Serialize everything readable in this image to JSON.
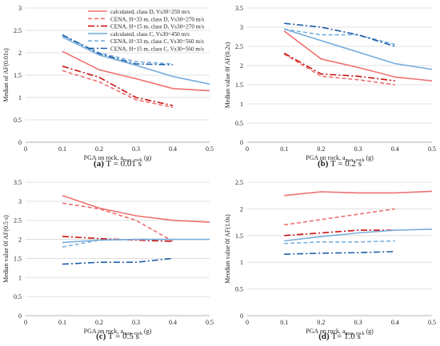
{
  "figure": {
    "legend_entries": [
      {
        "label": "calculated, class D, Vs30=250 m/s",
        "color": "#f07070",
        "dash": "solid"
      },
      {
        "label": "CENA, H=33 m, class D, Vs30=270 m/s",
        "color": "#f07070",
        "dash": "dashed"
      },
      {
        "label": "CENA, H=15 m, class D, Vs30=270 m/s",
        "color": "#cc1111",
        "dash": "dashdot"
      },
      {
        "label": "calculated, class C, Vs30=450 m/s",
        "color": "#7aaedc",
        "dash": "solid"
      },
      {
        "label": "CENA, H=33 m, class C, Vs30=560 m/s",
        "color": "#7aaedc",
        "dash": "dashed"
      },
      {
        "label": "CENA, H=15 m, class C, Vs30=560 m/s",
        "color": "#1f5fa8",
        "dash": "dashdot"
      }
    ]
  },
  "chart_data": [
    {
      "type": "line",
      "caption_letter": "(a)",
      "caption_text": "T = 0.01 s",
      "ylabel": "Median of AF(0.01s)",
      "xlabel_main": "PGA on rock, a",
      "xlabel_sub": "max, rock",
      "xlabel_unit": "(g)",
      "xlim": [
        0,
        0.5
      ],
      "ylim": [
        0,
        3
      ],
      "xticks": [
        "0",
        "0.1",
        "0.2",
        "0.3",
        "0.4",
        "0.5"
      ],
      "yticks": [
        "0",
        "0.5",
        "1",
        "1.5",
        "2",
        "2.5",
        "3"
      ],
      "has_legend": true,
      "series": [
        {
          "x": [
            0.1,
            0.2,
            0.3,
            0.4,
            0.5
          ],
          "y": [
            2.03,
            1.62,
            1.42,
            1.2,
            1.15
          ],
          "color": "#f07070",
          "dash": "solid"
        },
        {
          "x": [
            0.1,
            0.2,
            0.3,
            0.4
          ],
          "y": [
            1.6,
            1.35,
            0.95,
            0.78
          ],
          "color": "#f07070",
          "dash": "dashed"
        },
        {
          "x": [
            0.1,
            0.2,
            0.3,
            0.4
          ],
          "y": [
            1.7,
            1.45,
            1.0,
            0.82
          ],
          "color": "#cc1111",
          "dash": "dashdot"
        },
        {
          "x": [
            0.1,
            0.2,
            0.3,
            0.4,
            0.5
          ],
          "y": [
            2.35,
            1.95,
            1.72,
            1.47,
            1.3
          ],
          "color": "#7aaedc",
          "dash": "solid"
        },
        {
          "x": [
            0.1,
            0.2,
            0.3,
            0.4
          ],
          "y": [
            2.38,
            2.0,
            1.8,
            1.75
          ],
          "color": "#7aaedc",
          "dash": "dashed"
        },
        {
          "x": [
            0.1,
            0.2,
            0.3,
            0.4
          ],
          "y": [
            2.4,
            1.98,
            1.75,
            1.73
          ],
          "color": "#1f5fa8",
          "dash": "dashdot"
        }
      ]
    },
    {
      "type": "line",
      "caption_letter": "(b)",
      "caption_text": "T = 0.2 s",
      "ylabel": "Median value 0f AF(0.2s)",
      "xlabel_main": "PGA on rock, a",
      "xlabel_sub": "max, rock",
      "xlabel_unit": "(g)",
      "xlim": [
        0,
        0.5
      ],
      "ylim": [
        0,
        3.5
      ],
      "xticks": [
        "0",
        "0.1",
        "0.2",
        "0.3",
        "0.4",
        "0.5"
      ],
      "yticks": [
        "0",
        "0.5",
        "1",
        "1.5",
        "2",
        "2.5",
        "3",
        "3.5"
      ],
      "has_legend": false,
      "series": [
        {
          "x": [
            0.1,
            0.2,
            0.3,
            0.4,
            0.5
          ],
          "y": [
            2.9,
            2.17,
            1.95,
            1.7,
            1.6
          ],
          "color": "#f07070",
          "dash": "solid"
        },
        {
          "x": [
            0.1,
            0.2,
            0.3,
            0.4
          ],
          "y": [
            2.3,
            1.72,
            1.63,
            1.5
          ],
          "color": "#f07070",
          "dash": "dashed"
        },
        {
          "x": [
            0.1,
            0.2,
            0.3,
            0.4
          ],
          "y": [
            2.32,
            1.78,
            1.72,
            1.6
          ],
          "color": "#cc1111",
          "dash": "dashdot"
        },
        {
          "x": [
            0.1,
            0.2,
            0.3,
            0.4,
            0.5
          ],
          "y": [
            2.95,
            2.65,
            2.35,
            2.05,
            1.9
          ],
          "color": "#7aaedc",
          "dash": "solid"
        },
        {
          "x": [
            0.1,
            0.2,
            0.3,
            0.4
          ],
          "y": [
            2.95,
            2.8,
            2.8,
            2.55
          ],
          "color": "#7aaedc",
          "dash": "dashed"
        },
        {
          "x": [
            0.1,
            0.2,
            0.3,
            0.4
          ],
          "y": [
            3.1,
            3.0,
            2.8,
            2.5
          ],
          "color": "#1f5fa8",
          "dash": "dashdot"
        }
      ]
    },
    {
      "type": "line",
      "caption_letter": "(c)",
      "caption_text": "T = 0.5 s",
      "ylabel": "Median value 0f AF(0.5 s)",
      "xlabel_main": "PGA on rock, a",
      "xlabel_sub": "max, rock",
      "xlabel_unit": "(g)",
      "xlim": [
        0,
        0.5
      ],
      "ylim": [
        0,
        3.5
      ],
      "xticks": [
        "0",
        "0.1",
        "0.2",
        "0.3",
        "0.4",
        "0.5"
      ],
      "yticks": [
        "0",
        "0.5",
        "1",
        "1.5",
        "2",
        "2.5",
        "3",
        "3.5"
      ],
      "has_legend": false,
      "series": [
        {
          "x": [
            0.1,
            0.2,
            0.3,
            0.4,
            0.5
          ],
          "y": [
            3.15,
            2.82,
            2.62,
            2.5,
            2.45
          ],
          "color": "#f07070",
          "dash": "solid"
        },
        {
          "x": [
            0.1,
            0.2,
            0.3,
            0.4
          ],
          "y": [
            2.95,
            2.8,
            2.5,
            1.95
          ],
          "color": "#f07070",
          "dash": "dashed"
        },
        {
          "x": [
            0.1,
            0.2,
            0.3,
            0.4
          ],
          "y": [
            2.08,
            2.02,
            1.98,
            1.95
          ],
          "color": "#cc1111",
          "dash": "dashdot"
        },
        {
          "x": [
            0.1,
            0.2,
            0.3,
            0.4,
            0.5
          ],
          "y": [
            1.92,
            1.98,
            2.0,
            2.0,
            2.0
          ],
          "color": "#7aaedc",
          "dash": "solid"
        },
        {
          "x": [
            0.1,
            0.2,
            0.3,
            0.4
          ],
          "y": [
            1.8,
            1.98,
            2.0,
            2.0
          ],
          "color": "#7aaedc",
          "dash": "dashed"
        },
        {
          "x": [
            0.1,
            0.2,
            0.3,
            0.4
          ],
          "y": [
            1.35,
            1.4,
            1.4,
            1.5
          ],
          "color": "#1f5fa8",
          "dash": "dashdot"
        }
      ]
    },
    {
      "type": "line",
      "caption_letter": "(d)",
      "caption_text": "T= 1.0 s",
      "ylabel": "Meodian value 0f AF(1.0s)",
      "xlabel_main": "PGA on rock, a",
      "xlabel_sub": "max, rock",
      "xlabel_unit": "(g)",
      "xlim": [
        0,
        0.5
      ],
      "ylim": [
        0,
        2.5
      ],
      "xticks": [
        "0",
        "0.1",
        "0.2",
        "0.3",
        "0.4",
        "0.5"
      ],
      "yticks": [
        "0",
        "0.5",
        "1",
        "1.5",
        "2",
        "2.5"
      ],
      "has_legend": false,
      "series": [
        {
          "x": [
            0.1,
            0.2,
            0.3,
            0.4,
            0.5
          ],
          "y": [
            2.25,
            2.32,
            2.3,
            2.3,
            2.33
          ],
          "color": "#f07070",
          "dash": "solid"
        },
        {
          "x": [
            0.1,
            0.2,
            0.3,
            0.4
          ],
          "y": [
            1.7,
            1.8,
            1.9,
            2.0
          ],
          "color": "#f07070",
          "dash": "dashed"
        },
        {
          "x": [
            0.1,
            0.2,
            0.3,
            0.4
          ],
          "y": [
            1.5,
            1.55,
            1.6,
            1.6
          ],
          "color": "#cc1111",
          "dash": "dashdot"
        },
        {
          "x": [
            0.1,
            0.2,
            0.3,
            0.4,
            0.5
          ],
          "y": [
            1.4,
            1.48,
            1.55,
            1.6,
            1.62
          ],
          "color": "#7aaedc",
          "dash": "solid"
        },
        {
          "x": [
            0.1,
            0.2,
            0.3,
            0.4
          ],
          "y": [
            1.35,
            1.38,
            1.38,
            1.4
          ],
          "color": "#7aaedc",
          "dash": "dashed"
        },
        {
          "x": [
            0.1,
            0.2,
            0.3,
            0.4
          ],
          "y": [
            1.15,
            1.17,
            1.18,
            1.2
          ],
          "color": "#1f5fa8",
          "dash": "dashdot"
        }
      ]
    }
  ]
}
